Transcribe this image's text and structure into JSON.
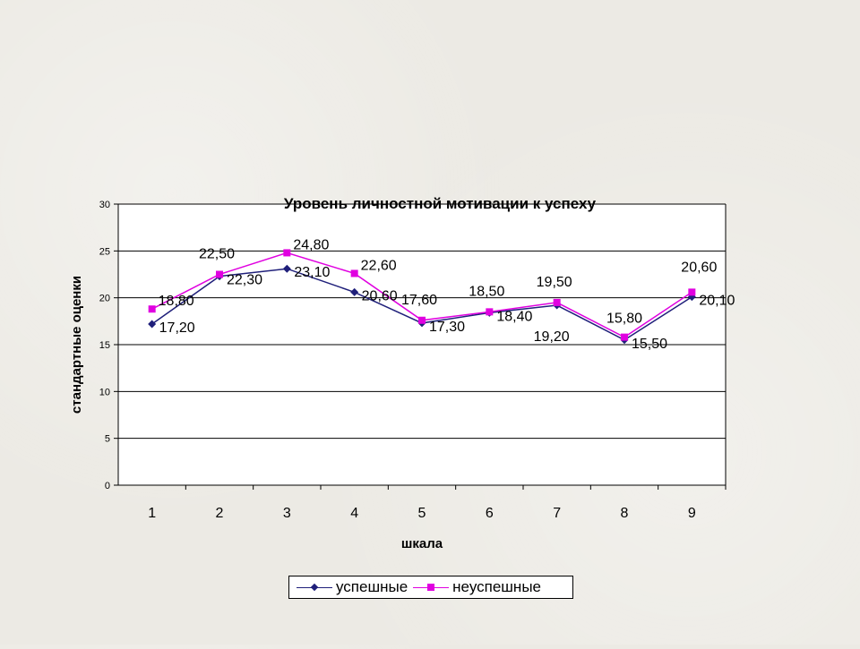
{
  "chart_data": {
    "type": "line",
    "title": "Уровень личностной мотивации к успеху",
    "xlabel": "шкала",
    "ylabel": "стандартные оценки",
    "categories": [
      "1",
      "2",
      "3",
      "4",
      "5",
      "6",
      "7",
      "8",
      "9"
    ],
    "ylim": [
      0,
      30
    ],
    "yticks": [
      "0",
      "5",
      "10",
      "15",
      "20",
      "25",
      "30"
    ],
    "grid": true,
    "legend_position": "bottom",
    "series": [
      {
        "name": "успешные",
        "color": "#1f1f7a",
        "marker": "diamond",
        "values": [
          17.2,
          22.3,
          23.1,
          20.6,
          17.3,
          18.4,
          19.2,
          15.5,
          20.1
        ],
        "labels": [
          "17,20",
          "22,30",
          "23,10",
          "20,60",
          "17,30",
          "18,40",
          "19,20",
          "15,50",
          "20,10"
        ]
      },
      {
        "name": "неуспешные",
        "color": "#e000e0",
        "marker": "square",
        "values": [
          18.8,
          22.5,
          24.8,
          22.6,
          17.6,
          18.5,
          19.5,
          15.8,
          20.6
        ],
        "labels": [
          "18,80",
          "22,50",
          "24,80",
          "22,60",
          "17,60",
          "18,50",
          "19,50",
          "15,80",
          "20,60"
        ]
      }
    ]
  }
}
